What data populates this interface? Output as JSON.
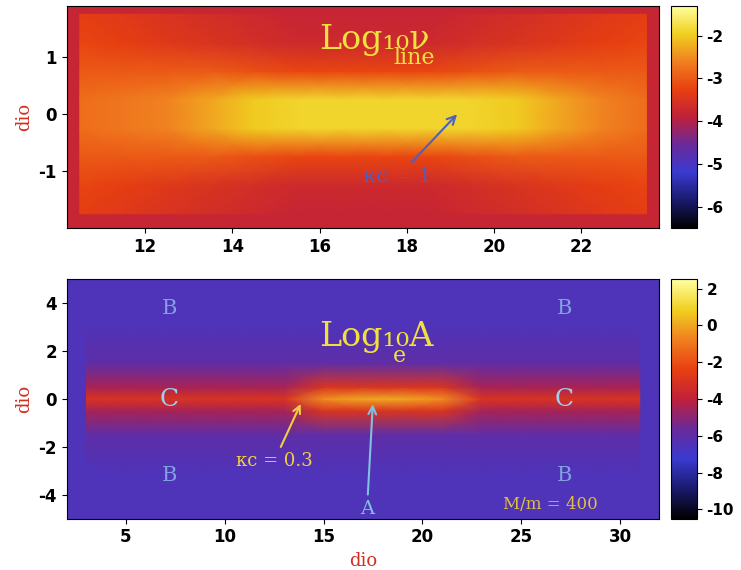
{
  "chart_data": [
    {
      "type": "heatmap",
      "label": "Log₁₀ν",
      "label_sub": "line",
      "ylabel": "dio",
      "xlim": [
        10.2,
        23.8
      ],
      "xticks": [
        12,
        14,
        16,
        18,
        20,
        22
      ],
      "ylim": [
        -2.0,
        1.9
      ],
      "yticks": [
        -1,
        0,
        1
      ],
      "x": [
        10.5,
        11.5,
        12.5,
        13.5,
        14.5,
        15.5,
        16.5,
        17.5,
        18.5,
        19.5,
        20.5,
        21.5,
        22.5,
        23.5
      ],
      "y": [
        -1.75,
        -1.25,
        -0.75,
        -0.25,
        0.25,
        0.75,
        1.25,
        1.75
      ],
      "cells": [
        [
          -3.3,
          -3.4,
          -3.5,
          -3.6,
          -3.7,
          -3.8,
          -3.8,
          -3.8,
          -3.8,
          -3.7,
          -3.6,
          -3.5,
          -3.4,
          -3.3
        ],
        [
          -3.2,
          -3.3,
          -3.4,
          -3.5,
          -3.6,
          -3.7,
          -3.7,
          -3.7,
          -3.7,
          -3.6,
          -3.5,
          -3.4,
          -3.3,
          -3.2
        ],
        [
          -3.0,
          -3.0,
          -3.0,
          -3.0,
          -3.1,
          -3.2,
          -3.2,
          -3.2,
          -3.2,
          -3.1,
          -3.0,
          -3.0,
          -3.0,
          -3.0
        ],
        [
          -2.8,
          -2.7,
          -2.6,
          -2.3,
          -2.0,
          -1.9,
          -1.9,
          -1.9,
          -1.9,
          -1.9,
          -2.0,
          -2.3,
          -2.6,
          -2.8
        ],
        [
          -2.8,
          -2.7,
          -2.6,
          -2.3,
          -2.0,
          -1.9,
          -1.9,
          -1.9,
          -1.9,
          -1.9,
          -2.0,
          -2.3,
          -2.6,
          -2.8
        ],
        [
          -3.0,
          -3.0,
          -3.0,
          -3.0,
          -3.1,
          -3.2,
          -3.2,
          -3.2,
          -3.2,
          -3.1,
          -3.0,
          -3.0,
          -3.0,
          -3.0
        ],
        [
          -3.2,
          -3.3,
          -3.4,
          -3.5,
          -3.6,
          -3.7,
          -3.7,
          -3.7,
          -3.7,
          -3.6,
          -3.5,
          -3.4,
          -3.3,
          -3.2
        ],
        [
          -3.3,
          -3.4,
          -3.5,
          -3.6,
          -3.7,
          -3.8,
          -3.8,
          -3.8,
          -3.8,
          -3.7,
          -3.6,
          -3.5,
          -3.4,
          -3.3
        ]
      ],
      "colorbar_range": [
        -6.5,
        -1.3
      ],
      "colorbar_ticks": [
        -6,
        -5,
        -4,
        -3,
        -2
      ],
      "annotations": [
        "κc = 1"
      ]
    },
    {
      "type": "heatmap",
      "label": "Log₁₀A",
      "label_sub": "e",
      "xlabel": "dio",
      "ylabel": "dio",
      "xlim": [
        2,
        32
      ],
      "xticks": [
        5,
        10,
        15,
        20,
        25,
        30
      ],
      "ylim": [
        -5,
        5
      ],
      "yticks": [
        -4,
        -2,
        0,
        2,
        4
      ],
      "x": [
        3,
        5,
        7,
        9,
        11,
        13,
        15,
        17,
        19,
        21,
        23,
        25,
        27,
        29,
        31
      ],
      "y": [
        -4.5,
        -3.0,
        -1.5,
        -0.5,
        0.0,
        0.5,
        1.5,
        3.0,
        4.5
      ],
      "cells": [
        [
          -6.5,
          -6.5,
          -6.5,
          -6.5,
          -6.5,
          -6.5,
          -6.5,
          -6.5,
          -6.5,
          -6.5,
          -6.5,
          -6.5,
          -6.5,
          -6.5,
          -6.5
        ],
        [
          -6.5,
          -6.5,
          -6.5,
          -6.5,
          -6.5,
          -6.5,
          -6.5,
          -6.5,
          -6.5,
          -6.5,
          -6.5,
          -6.5,
          -6.5,
          -6.5,
          -6.5
        ],
        [
          -6.0,
          -6.0,
          -6.0,
          -6.0,
          -6.0,
          -6.0,
          -6.0,
          -6.0,
          -6.0,
          -6.0,
          -6.0,
          -6.0,
          -6.0,
          -6.0,
          -6.0
        ],
        [
          -4.5,
          -4.5,
          -4.5,
          -4.5,
          -4.5,
          -4.5,
          -3.0,
          -3.0,
          -3.0,
          -3.0,
          -4.5,
          -4.5,
          -4.5,
          -4.5,
          -4.5
        ],
        [
          -3.0,
          -3.0,
          -3.0,
          -3.0,
          -3.0,
          -3.0,
          -0.5,
          0.0,
          0.0,
          -0.5,
          -3.0,
          -3.0,
          -3.0,
          -3.0,
          -3.0
        ],
        [
          -4.5,
          -4.5,
          -4.5,
          -4.5,
          -4.5,
          -4.5,
          -3.0,
          -3.0,
          -3.0,
          -3.0,
          -4.5,
          -4.5,
          -4.5,
          -4.5,
          -4.5
        ],
        [
          -6.0,
          -6.0,
          -6.0,
          -6.0,
          -6.0,
          -6.0,
          -6.0,
          -6.0,
          -6.0,
          -6.0,
          -6.0,
          -6.0,
          -6.0,
          -6.0,
          -6.0
        ],
        [
          -6.5,
          -6.5,
          -6.5,
          -6.5,
          -6.5,
          -6.5,
          -6.5,
          -6.5,
          -6.5,
          -6.5,
          -6.5,
          -6.5,
          -6.5,
          -6.5,
          -6.5
        ],
        [
          -6.5,
          -6.5,
          -6.5,
          -6.5,
          -6.5,
          -6.5,
          -6.5,
          -6.5,
          -6.5,
          -6.5,
          -6.5,
          -6.5,
          -6.5,
          -6.5,
          -6.5
        ]
      ],
      "colorbar_range": [
        -10.5,
        2.5
      ],
      "colorbar_ticks": [
        -10,
        -8,
        -6,
        -4,
        -2,
        0,
        2
      ],
      "annotations": [
        "κc = 0.3",
        "A",
        "B",
        "B",
        "B",
        "B",
        "C",
        "C",
        "M/m = 400"
      ]
    }
  ]
}
